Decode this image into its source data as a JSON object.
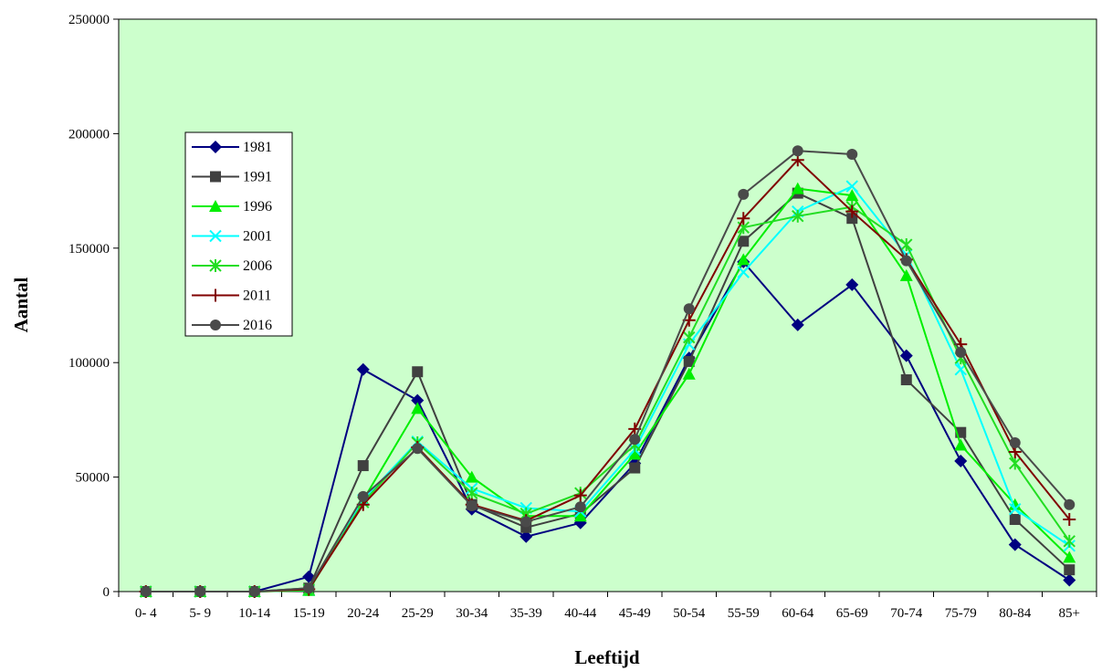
{
  "chart_data": {
    "type": "line",
    "title": "",
    "xlabel": "Leeftijd",
    "ylabel": "Aantal",
    "ylim": [
      0,
      250000
    ],
    "yticks": [
      "0",
      "50000",
      "100000",
      "150000",
      "200000",
      "250000"
    ],
    "grid": false,
    "legend_position": "left",
    "plot_background": "#ccffcc",
    "categories": [
      "0- 4",
      "5- 9",
      "10-14",
      "15-19",
      "20-24",
      "25-29",
      "30-34",
      "35-39",
      "40-44",
      "45-49",
      "50-54",
      "55-59",
      "60-64",
      "65-69",
      "70-74",
      "75-79",
      "80-84",
      "85+"
    ],
    "series": [
      {
        "name": "1981",
        "color": "#000080",
        "marker": "diamond",
        "values": [
          0,
          0,
          0,
          6500,
          97000,
          83500,
          36000,
          24000,
          30000,
          56000,
          102000,
          144000,
          116500,
          134000,
          103000,
          57000,
          20500,
          5000
        ]
      },
      {
        "name": "1991",
        "color": "#404040",
        "marker": "square",
        "values": [
          0,
          0,
          0,
          1500,
          55000,
          96000,
          38000,
          28000,
          34000,
          54000,
          100500,
          153000,
          174000,
          163000,
          92500,
          69500,
          31500,
          9500
        ]
      },
      {
        "name": "1996",
        "color": "#00ee00",
        "marker": "triangle",
        "values": [
          0,
          0,
          0,
          500,
          40000,
          80000,
          50000,
          33000,
          33000,
          60000,
          95000,
          145000,
          176000,
          173000,
          138000,
          64000,
          38000,
          15000
        ]
      },
      {
        "name": "2001",
        "color": "#00ffff",
        "marker": "x",
        "values": [
          0,
          0,
          0,
          700,
          40000,
          65500,
          45000,
          36500,
          35000,
          62000,
          108000,
          139500,
          166000,
          177000,
          147000,
          97000,
          36000,
          20000
        ]
      },
      {
        "name": "2006",
        "color": "#22dd22",
        "marker": "star",
        "values": [
          0,
          0,
          0,
          800,
          39000,
          65000,
          43000,
          34000,
          43000,
          64000,
          111000,
          159000,
          164000,
          168000,
          151500,
          102000,
          56000,
          22000
        ]
      },
      {
        "name": "2011",
        "color": "#800000",
        "marker": "plus",
        "values": [
          0,
          0,
          0,
          1000,
          38000,
          63000,
          38000,
          31000,
          42000,
          71000,
          118500,
          163000,
          188500,
          166000,
          145000,
          108000,
          61000,
          31500
        ]
      },
      {
        "name": "2016",
        "color": "#4a4a4a",
        "marker": "circle",
        "values": [
          0,
          0,
          0,
          1500,
          41500,
          62500,
          37500,
          30500,
          37000,
          66500,
          123500,
          173500,
          192500,
          191000,
          144500,
          104500,
          65000,
          38000
        ]
      }
    ]
  }
}
